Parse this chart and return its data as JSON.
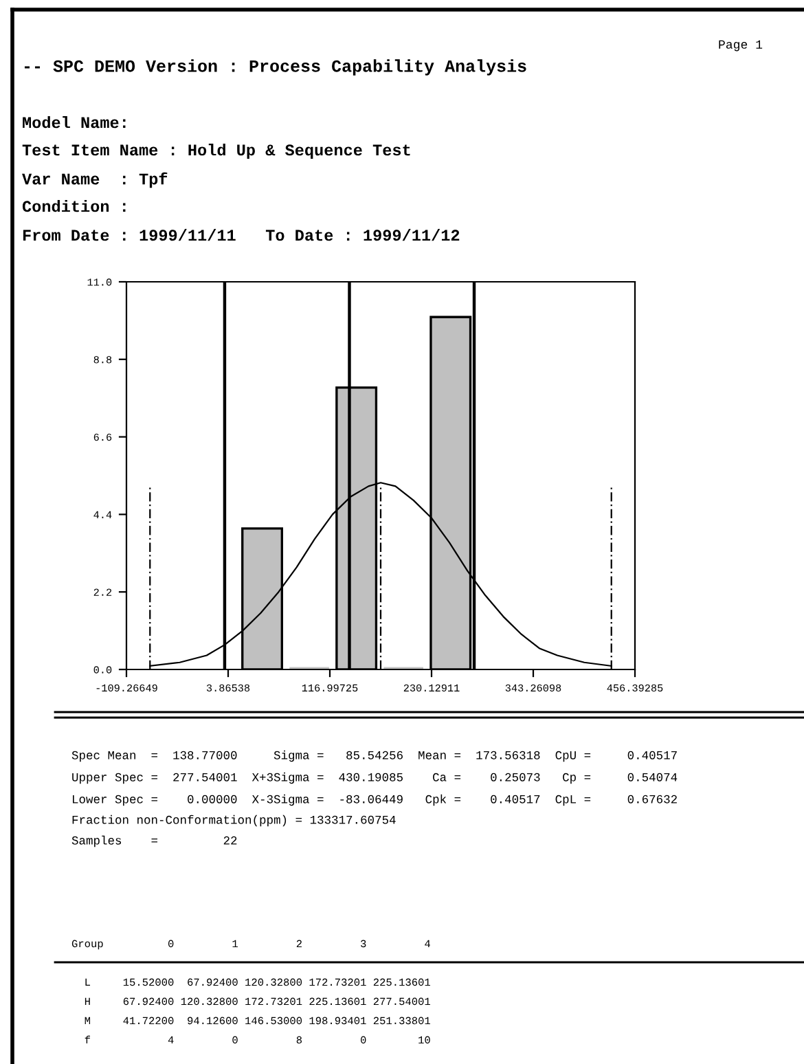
{
  "chart_data": {
    "type": "histogram",
    "title": "-- SPC DEMO Version : Process Capability Analysis",
    "bins": [
      15.52,
      67.924,
      120.328,
      172.73201,
      225.13601,
      277.54001
    ],
    "series": [
      {
        "color": "#c0c0c0",
        "values": [
          4,
          0,
          8,
          0,
          10
        ]
      },
      {
        "type": "line",
        "color": "#000000",
        "x": [
          -83,
          -50,
          -20,
          0,
          20,
          40,
          60,
          80,
          100,
          120,
          140,
          160,
          173.56,
          190,
          210,
          230,
          250,
          270,
          290,
          310,
          330,
          350,
          370,
          400,
          430
        ],
        "values": [
          0.1,
          0.2,
          0.4,
          0.7,
          1.1,
          1.6,
          2.2,
          2.9,
          3.7,
          4.4,
          4.9,
          5.2,
          5.3,
          5.2,
          4.8,
          4.3,
          3.6,
          2.8,
          2.1,
          1.5,
          1.0,
          0.6,
          0.4,
          0.2,
          0.1
        ]
      }
    ],
    "xlim": [
      -109.26649,
      456.39285
    ],
    "xticks": [
      -109.26649,
      3.86538,
      116.99725,
      230.12911,
      343.26098,
      456.39285
    ],
    "ylim": [
      0,
      11
    ],
    "yticks": [
      {
        "value": 0,
        "label": "0.0"
      },
      {
        "value": 2.2,
        "label": "2.2"
      },
      {
        "value": 4.4,
        "label": "4.4"
      },
      {
        "value": 6.6,
        "label": "6.6"
      },
      {
        "value": 8.8,
        "label": "8.8"
      },
      {
        "value": 11,
        "label": "11.0"
      }
    ],
    "ref_lines": [
      {
        "axis": "x",
        "value": 0,
        "color": "#000000",
        "line_style": "solid"
      },
      {
        "axis": "x",
        "value": 138.77,
        "color": "#000000",
        "line_style": "solid"
      },
      {
        "axis": "x",
        "value": 277.54001,
        "color": "#000000",
        "line_style": "solid"
      },
      {
        "axis": "x",
        "value": -83.06449,
        "color": "#000000",
        "line_style": "dashed"
      },
      {
        "axis": "x",
        "value": 173.56318,
        "color": "#000000",
        "line_style": "dashed"
      },
      {
        "axis": "x",
        "value": 430.19085,
        "color": "#000000",
        "line_style": "dashed"
      }
    ],
    "grid": false,
    "legend": false,
    "annotations": [
      "Page 1",
      "Model Name:",
      "Test Item Name : Hold Up & Sequence Test",
      "Var Name  : Tpf",
      "Condition :",
      "From Date : 1999/11/11   To Date : 1999/11/12",
      "Spec Mean  =  138.77000     Sigma =   85.54256  Mean =  173.56318  CpU =     0.40517",
      "Upper Spec =  277.54001  X+3Sigma =  430.19085    Ca =    0.25073   Cp =     0.54074",
      "Lower Spec =    0.00000  X-3Sigma =  -83.06449   Cpk =    0.40517  CpL =     0.67632",
      "Fraction non-Conformation(ppm) = 133317.60754",
      "Samples    =         22",
      "Group          0         1         2         3         4",
      "  L     15.52000  67.92400 120.32800 172.73201 225.13601",
      "  H     67.92400 120.32800 172.73201 225.13601 277.54001",
      "  M     41.72200  94.12600 146.53000 198.93401 251.33801",
      "  f            4         0         8         0        10"
    ]
  }
}
